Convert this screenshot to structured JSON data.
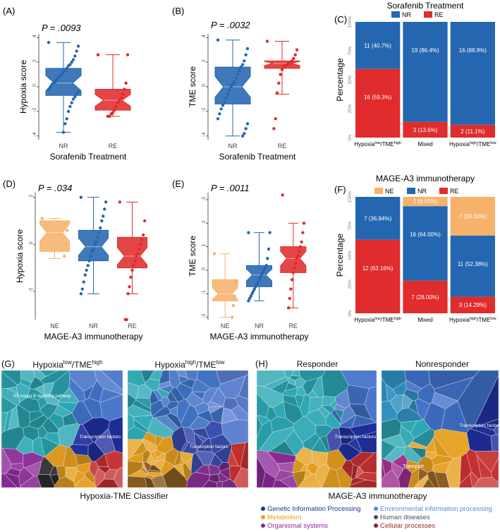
{
  "colors": {
    "nr": "#2467b0",
    "re": "#e02c2c",
    "ne": "#f6b26b",
    "genetic": "#1f2f9c",
    "metabolism": "#e6a020",
    "organismal": "#8a2a96",
    "environmental": "#4f8fd0",
    "human": "#4a4f5a",
    "cellular": "#9a1f1f"
  },
  "panelA": {
    "tag": "(A)",
    "p": "P = .0093",
    "ylabel": "Hypoxia score",
    "xlabel": "Sorafenib Treatment"
  },
  "panelB": {
    "tag": "(B)",
    "p": "P = .0032",
    "ylabel": "TME score",
    "xlabel": "Sorafenib Treatment"
  },
  "panelC": {
    "tag": "(C)",
    "title": "Sorafenib Treatment",
    "ylabel": "Percentage"
  },
  "panelD": {
    "tag": "(D)",
    "p": "P = .034",
    "ylabel": "Hypoxia score",
    "xlabel": "MAGE-A3 immunotherapy"
  },
  "panelE": {
    "tag": "(E)",
    "p": "P = .0011",
    "ylabel": "TME score",
    "xlabel": "MAGE-A3 immunotherapy"
  },
  "panelF": {
    "tag": "(F)",
    "title": "MAGE-A3 immunotherapy",
    "ylabel": "Percentage"
  },
  "panelG": {
    "tag": "(G)",
    "left": "Hypoxia",
    "left_sup1": "low",
    "left_mid": "/TME",
    "left_sup2": "high",
    "right": "Hypoxia",
    "right_sup1": "high",
    "right_mid": "/TME",
    "right_sup2": "low",
    "caption": "Hypoxia-TME Classifier"
  },
  "panelH": {
    "tag": "(H)",
    "left": "Responder",
    "right": "Nonresponder",
    "caption": "MAGE-A3 immunotherapy"
  },
  "voronoi_labels": {
    "g1a": "NF-kappa B signaling pathway",
    "g1b": "Transcription factors",
    "g2a": "Transcription factors",
    "h1a": "Transcription factors",
    "h2a": "Transcription factors",
    "h2b": "Transport"
  },
  "legend": [
    {
      "label": "Genetic Information Processing",
      "color": "#1f2f9c"
    },
    {
      "label": "Environmental information processing",
      "color": "#4f8fd0"
    },
    {
      "label": "Metabolism",
      "color": "#e6a020"
    },
    {
      "label": "Human diseases",
      "color": "#4a4f5a"
    },
    {
      "label": "Organismal systems",
      "color": "#8a2a96"
    },
    {
      "label": "Cellular processes",
      "color": "#9a1f1f"
    }
  ],
  "chart_data": [
    {
      "id": "A",
      "type": "box",
      "title": "",
      "xlabel": "Sorafenib Treatment",
      "ylabel": "Hypoxia score",
      "categories": [
        "NR",
        "RE"
      ],
      "ylim": [
        -4.3,
        4.3
      ],
      "yticks": [
        -4,
        -2,
        0,
        2,
        4
      ],
      "boxes": [
        {
          "cat": "NR",
          "min": -3.7,
          "q1": -0.7,
          "median": 0.3,
          "q3": 1.5,
          "max": 3.6,
          "points": [
            3.6,
            3.3,
            2.9,
            2.5,
            2.2,
            2.0,
            1.8,
            1.7,
            1.5,
            1.3,
            1.2,
            1.0,
            0.9,
            0.8,
            0.6,
            0.4,
            0.3,
            0.2,
            0.0,
            -0.2,
            -0.4,
            -0.6,
            -0.8,
            -1.0,
            -1.3,
            -1.6,
            -2.0,
            -2.6,
            -3.0,
            -3.7
          ]
        },
        {
          "cat": "RE",
          "min": -2.4,
          "q1": -1.9,
          "median": -1.1,
          "q3": -0.2,
          "max": 2.6,
          "points": [
            2.6,
            2.6,
            0.3,
            -0.2,
            -0.6,
            -0.9,
            -1.1,
            -1.3,
            -1.6,
            -1.9,
            -2.1,
            -2.2,
            -2.4,
            -2.4
          ]
        }
      ]
    },
    {
      "id": "B",
      "type": "box",
      "title": "",
      "xlabel": "Sorafenib Treatment",
      "ylabel": "TME score",
      "categories": [
        "NR",
        "RE"
      ],
      "ylim": [
        -4.3,
        4.3
      ],
      "yticks": [
        -4,
        -2,
        0,
        2,
        4
      ],
      "boxes": [
        {
          "cat": "NR",
          "min": -4.0,
          "q1": -1.4,
          "median": 0.0,
          "q3": 1.6,
          "max": 3.8,
          "points": [
            3.8,
            3.1,
            2.6,
            2.1,
            1.8,
            1.6,
            1.3,
            1.0,
            0.7,
            0.4,
            0.2,
            0.0,
            -0.3,
            -0.6,
            -0.9,
            -1.2,
            -1.5,
            -1.8,
            -2.2,
            -2.6,
            -3.0,
            -3.4,
            -3.8,
            -4.0
          ]
        },
        {
          "cat": "RE",
          "min": -0.6,
          "q1": 1.5,
          "median": 1.9,
          "q3": 2.1,
          "max": 3.7,
          "points": [
            3.7,
            3.0,
            2.6,
            2.3,
            2.1,
            2.0,
            1.9,
            1.8,
            1.7,
            1.6,
            1.4,
            1.0,
            0.3,
            -0.5,
            -2.6,
            -3.4
          ]
        }
      ]
    },
    {
      "id": "C",
      "type": "bar",
      "stacked": true,
      "title": "Sorafenib Treatment",
      "xlabel": "",
      "ylabel": "Percentage",
      "categories": [
        "Hypoxia^low/TME^high",
        "Mixed",
        "Hypoxia^high/TME^low"
      ],
      "legend": [
        "NR",
        "RE"
      ],
      "legend_position": "top",
      "yticks": [
        "0%",
        "25%",
        "50%",
        "75%",
        "100%"
      ],
      "series": [
        {
          "name": "RE",
          "values": [
            59.3,
            13.6,
            11.1
          ],
          "labels": [
            "16 (59.3%)",
            "3 (13.6%)",
            "2 (11.1%)"
          ]
        },
        {
          "name": "NR",
          "values": [
            40.7,
            86.4,
            88.9
          ],
          "labels": [
            "11 (40.7%)",
            "19 (86.4%)",
            "16 (88.9%)"
          ]
        }
      ]
    },
    {
      "id": "D",
      "type": "box",
      "title": "",
      "xlabel": "MAGE-A3 immunotherapy",
      "ylabel": "Hypoxia score",
      "categories": [
        "NE",
        "NR",
        "RE"
      ],
      "ylim": [
        -3.2,
        2.2
      ],
      "yticks": [
        -2,
        0,
        2
      ],
      "boxes": [
        {
          "cat": "NE",
          "min": -0.6,
          "q1": -0.3,
          "median": 0.5,
          "q3": 1.0,
          "max": 1.1,
          "points": [
            1.1,
            0.6,
            0.0,
            -0.5
          ]
        },
        {
          "cat": "NR",
          "min": -2.1,
          "q1": -0.7,
          "median": -0.1,
          "q3": 0.6,
          "max": 2.0,
          "points": [
            2.0,
            1.8,
            1.5,
            1.2,
            1.0,
            0.7,
            0.5,
            0.3,
            0.1,
            0.0,
            -0.2,
            -0.3,
            -0.5,
            -0.7,
            -0.9,
            -1.1,
            -1.3,
            -1.6,
            -1.9,
            -2.1
          ]
        },
        {
          "cat": "RE",
          "min": -2.1,
          "q1": -1.0,
          "median": -0.5,
          "q3": 0.3,
          "max": 1.8,
          "points": [
            1.8,
            1.0,
            0.4,
            0.2,
            0.0,
            -0.2,
            -0.4,
            -0.5,
            -0.7,
            -0.9,
            -1.1,
            -1.4,
            -1.8,
            -2.1,
            -3.2,
            -3.2
          ]
        }
      ]
    },
    {
      "id": "E",
      "type": "box",
      "title": "",
      "xlabel": "MAGE-A3 immunotherapy",
      "ylabel": "TME score",
      "categories": [
        "NE",
        "NR",
        "RE"
      ],
      "ylim": [
        -2.1,
        3.3
      ],
      "yticks": [
        -2,
        -1,
        0,
        1,
        2,
        3
      ],
      "boxes": [
        {
          "cat": "NE",
          "min": -2.0,
          "q1": -1.3,
          "median": -1.0,
          "q3": -0.4,
          "max": 0.7,
          "points": [
            0.7,
            -0.5,
            -1.1,
            -1.5,
            -2.0
          ]
        },
        {
          "cat": "NR",
          "min": -1.3,
          "q1": -0.7,
          "median": -0.2,
          "q3": 0.2,
          "max": 1.6,
          "points": [
            1.6,
            1.6,
            0.9,
            0.5,
            0.2,
            0.1,
            0.0,
            -0.1,
            -0.2,
            -0.3,
            -0.4,
            -0.5,
            -0.6,
            -0.7,
            -0.8,
            -0.9,
            -1.0,
            -1.1,
            -1.2,
            -1.3
          ]
        },
        {
          "cat": "RE",
          "min": -1.6,
          "q1": -0.1,
          "median": 0.5,
          "q3": 1.0,
          "max": 2.0,
          "points": [
            3.2,
            2.0,
            1.6,
            1.2,
            1.0,
            0.8,
            0.6,
            0.5,
            0.3,
            0.1,
            -0.1,
            -0.4,
            -0.8,
            -1.2,
            -1.6
          ]
        }
      ]
    },
    {
      "id": "F",
      "type": "bar",
      "stacked": true,
      "title": "MAGE-A3 immunotherapy",
      "xlabel": "",
      "ylabel": "Percentage",
      "categories": [
        "Hypoxia^low/TME^high",
        "Mixed",
        "Hypoxia^high/TME^low"
      ],
      "legend": [
        "NE",
        "NR",
        "RE"
      ],
      "legend_position": "top",
      "yticks": [
        "0%",
        "25%",
        "50%",
        "75%",
        "100%"
      ],
      "series": [
        {
          "name": "RE",
          "values": [
            63.16,
            28.0,
            14.29
          ],
          "labels": [
            "12 (63.16%)",
            "7 (28.00%)",
            "3 (14.29%)"
          ]
        },
        {
          "name": "NR",
          "values": [
            36.84,
            64.0,
            52.38
          ],
          "labels": [
            "7 (36.84%)",
            "16 (64.00%)",
            "11 (52.38%)"
          ]
        },
        {
          "name": "NE",
          "values": [
            0,
            8.0,
            33.33
          ],
          "labels": [
            "",
            "2 (8.00%)",
            "7 (33.33%)"
          ]
        }
      ]
    }
  ]
}
